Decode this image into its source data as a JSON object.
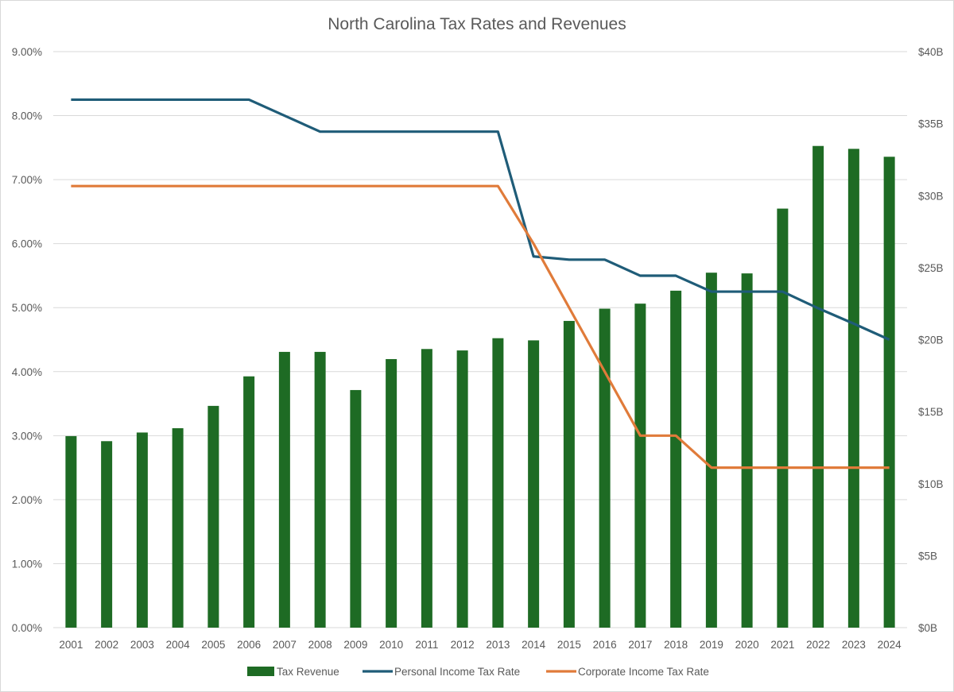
{
  "chart_data": {
    "type": "bar",
    "title": "North Carolina Tax Rates and Revenues",
    "categories": [
      "2001",
      "2002",
      "2003",
      "2004",
      "2005",
      "2006",
      "2007",
      "2008",
      "2009",
      "2010",
      "2011",
      "2012",
      "2013",
      "2014",
      "2015",
      "2016",
      "2017",
      "2018",
      "2019",
      "2020",
      "2021",
      "2022",
      "2023",
      "2024"
    ],
    "series": [
      {
        "name": "Tax Revenue",
        "type": "bar",
        "axis": "right",
        "unit": "billion USD",
        "color": "#1e6b24",
        "values": [
          13.3,
          12.95,
          13.55,
          13.85,
          15.4,
          17.45,
          19.15,
          19.15,
          16.5,
          18.65,
          19.35,
          19.25,
          20.1,
          19.95,
          21.3,
          22.15,
          22.5,
          23.4,
          24.65,
          24.6,
          29.1,
          33.45,
          33.25,
          32.7
        ]
      },
      {
        "name": "Personal Income Tax Rate",
        "type": "line",
        "axis": "left",
        "unit": "percent",
        "color": "#1f5c78",
        "values": [
          8.25,
          8.25,
          8.25,
          8.25,
          8.25,
          8.25,
          8.0,
          7.75,
          7.75,
          7.75,
          7.75,
          7.75,
          7.75,
          5.8,
          5.75,
          5.75,
          5.499,
          5.499,
          5.25,
          5.25,
          5.25,
          4.99,
          4.75,
          4.5
        ]
      },
      {
        "name": "Corporate Income Tax Rate",
        "type": "line",
        "axis": "left",
        "unit": "percent",
        "color": "#e07b3a",
        "values": [
          6.9,
          6.9,
          6.9,
          6.9,
          6.9,
          6.9,
          6.9,
          6.9,
          6.9,
          6.9,
          6.9,
          6.9,
          6.9,
          6.0,
          5.0,
          4.0,
          3.0,
          3.0,
          2.5,
          2.5,
          2.5,
          2.5,
          2.5,
          2.5
        ]
      }
    ],
    "y_left": {
      "min": 0,
      "max": 9,
      "step": 1,
      "tick_labels": [
        "0.00%",
        "1.00%",
        "2.00%",
        "3.00%",
        "4.00%",
        "5.00%",
        "6.00%",
        "7.00%",
        "8.00%",
        "9.00%"
      ]
    },
    "y_right": {
      "min": 0,
      "max": 40,
      "step": 5,
      "tick_labels": [
        "$0B",
        "$5B",
        "$10B",
        "$15B",
        "$20B",
        "$25B",
        "$30B",
        "$35B",
        "$40B"
      ]
    },
    "grid": true,
    "legend_position": "bottom"
  },
  "colors": {
    "gridline": "#d9d9d9",
    "text": "#595959"
  }
}
